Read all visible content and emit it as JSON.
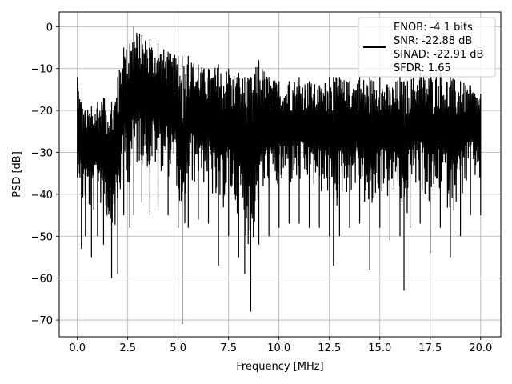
{
  "chart_data": {
    "type": "line",
    "title": "",
    "xlabel": "Frequency [MHz]",
    "ylabel": "PSD [dB]",
    "xlim": [
      -0.9,
      21.0
    ],
    "ylim": [
      -74.0,
      3.5
    ],
    "xticks": [
      0.0,
      2.5,
      5.0,
      7.5,
      10.0,
      12.5,
      15.0,
      17.5,
      20.0
    ],
    "xtick_labels": [
      "0.0",
      "2.5",
      "5.0",
      "7.5",
      "10.0",
      "12.5",
      "15.0",
      "17.5",
      "20.0"
    ],
    "yticks": [
      0,
      -10,
      -20,
      -30,
      -40,
      -50,
      -60,
      -70
    ],
    "ytick_labels": [
      "0",
      "−10",
      "−20",
      "−30",
      "−40",
      "−50",
      "−60",
      "−70"
    ],
    "grid": true,
    "legend_position": "top-right",
    "line_color": "#000000",
    "series": [
      {
        "envelope": [
          {
            "x": 0.0,
            "min": -36,
            "max": -12
          },
          {
            "x": 0.2,
            "min": -53,
            "max": -18
          },
          {
            "x": 0.4,
            "min": -50,
            "max": -20
          },
          {
            "x": 0.7,
            "min": -55,
            "max": -19
          },
          {
            "x": 1.0,
            "min": -50,
            "max": -18
          },
          {
            "x": 1.3,
            "min": -52,
            "max": -17
          },
          {
            "x": 1.7,
            "min": -60,
            "max": -18
          },
          {
            "x": 2.0,
            "min": -59,
            "max": -12
          },
          {
            "x": 2.3,
            "min": -45,
            "max": -5
          },
          {
            "x": 2.6,
            "min": -48,
            "max": -4
          },
          {
            "x": 2.8,
            "min": -45,
            "max": 0
          },
          {
            "x": 3.2,
            "min": -42,
            "max": -2
          },
          {
            "x": 3.6,
            "min": -45,
            "max": -3
          },
          {
            "x": 4.0,
            "min": -43,
            "max": -4
          },
          {
            "x": 4.5,
            "min": -45,
            "max": -6
          },
          {
            "x": 5.0,
            "min": -48,
            "max": -7
          },
          {
            "x": 5.2,
            "min": -71,
            "max": -7
          },
          {
            "x": 5.5,
            "min": -48,
            "max": -7
          },
          {
            "x": 6.0,
            "min": -46,
            "max": -9
          },
          {
            "x": 6.5,
            "min": -47,
            "max": -10
          },
          {
            "x": 7.0,
            "min": -57,
            "max": -9
          },
          {
            "x": 7.5,
            "min": -50,
            "max": -10
          },
          {
            "x": 8.0,
            "min": -55,
            "max": -11
          },
          {
            "x": 8.3,
            "min": -59,
            "max": -12
          },
          {
            "x": 8.6,
            "min": -68,
            "max": -12
          },
          {
            "x": 9.0,
            "min": -52,
            "max": -8
          },
          {
            "x": 9.5,
            "min": -50,
            "max": -12
          },
          {
            "x": 10.0,
            "min": -48,
            "max": -13
          },
          {
            "x": 10.5,
            "min": -47,
            "max": -13
          },
          {
            "x": 11.0,
            "min": -47,
            "max": -12
          },
          {
            "x": 11.5,
            "min": -48,
            "max": -13
          },
          {
            "x": 12.0,
            "min": -48,
            "max": -14
          },
          {
            "x": 12.5,
            "min": -50,
            "max": -12
          },
          {
            "x": 12.7,
            "min": -57,
            "max": -12
          },
          {
            "x": 13.0,
            "min": -50,
            "max": -12
          },
          {
            "x": 13.5,
            "min": -48,
            "max": -13
          },
          {
            "x": 14.0,
            "min": -47,
            "max": -12
          },
          {
            "x": 14.5,
            "min": -58,
            "max": -12
          },
          {
            "x": 15.0,
            "min": -48,
            "max": -12
          },
          {
            "x": 15.5,
            "min": -51,
            "max": -14
          },
          {
            "x": 16.0,
            "min": -50,
            "max": -12
          },
          {
            "x": 16.2,
            "min": -63,
            "max": -13
          },
          {
            "x": 16.5,
            "min": -48,
            "max": -12
          },
          {
            "x": 17.0,
            "min": -47,
            "max": -11
          },
          {
            "x": 17.5,
            "min": -54,
            "max": -11
          },
          {
            "x": 18.0,
            "min": -48,
            "max": -11
          },
          {
            "x": 18.5,
            "min": -55,
            "max": -12
          },
          {
            "x": 19.0,
            "min": -50,
            "max": -13
          },
          {
            "x": 19.5,
            "min": -45,
            "max": -14
          },
          {
            "x": 20.0,
            "min": -45,
            "max": -16
          }
        ]
      }
    ]
  },
  "legend": {
    "entries": [
      "ENOB: -4.1 bits",
      "SNR: -22.88 dB",
      "SINAD: -22.91 dB",
      "SFDR: 1.65"
    ],
    "line_color": "#000000"
  }
}
